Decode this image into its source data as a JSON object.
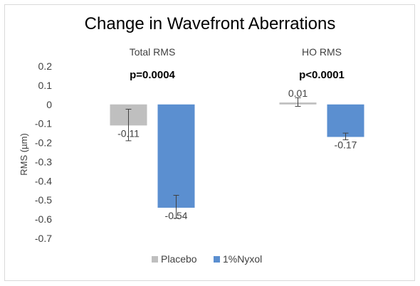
{
  "chart_data": {
    "type": "bar",
    "title": "Change in Wavefront Aberrations",
    "ylabel": "RMS (µm)",
    "xlabel": "",
    "categories": [
      "Total RMS",
      "HO RMS"
    ],
    "p_values": [
      "p=0.0004",
      "p<0.0001"
    ],
    "series": [
      {
        "name": "Placebo",
        "color": "#bfbfbf",
        "values": [
          -0.11,
          0.01
        ],
        "labels": [
          "-0.11",
          "0.01"
        ],
        "err_low": [
          -0.19,
          -0.01
        ],
        "err_high": [
          -0.025,
          0.035
        ]
      },
      {
        "name": "1%Nyxol",
        "color": "#5b8fd0",
        "values": [
          -0.54,
          -0.17
        ],
        "labels": [
          "-0.54",
          "-0.17"
        ],
        "err_low": [
          -0.595,
          -0.185
        ],
        "err_high": [
          -0.475,
          -0.15
        ]
      }
    ],
    "ylim": [
      -0.7,
      0.2
    ],
    "yticks": [
      0.2,
      0.1,
      0,
      -0.1,
      -0.2,
      -0.3,
      -0.4,
      -0.5,
      -0.6,
      -0.7
    ],
    "ytick_labels": [
      "0.2",
      "0.1",
      "0",
      "-0.1",
      "-0.2",
      "-0.3",
      "-0.4",
      "-0.5",
      "-0.6",
      "-0.7"
    ],
    "grid": false,
    "legend_position": "bottom",
    "error_bars": true
  }
}
